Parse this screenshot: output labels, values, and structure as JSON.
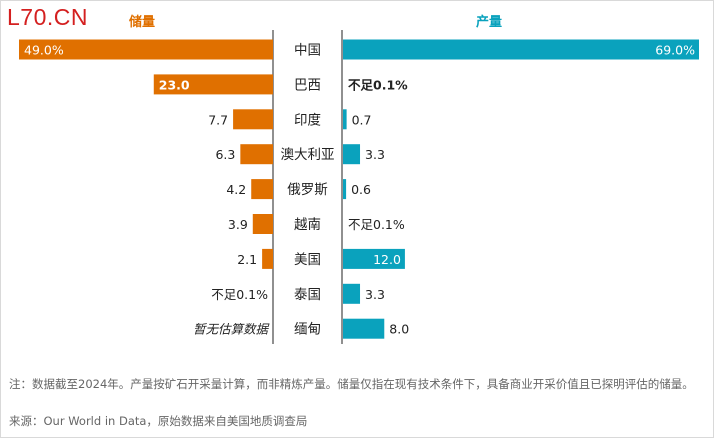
{
  "brand": "L70.CN",
  "chart_data": {
    "type": "bar",
    "title": "",
    "categories": [
      "中国",
      "巴西",
      "印度",
      "澳大利亚",
      "俄罗斯",
      "越南",
      "美国",
      "泰国",
      "缅甸"
    ],
    "series": [
      {
        "name": "储量",
        "color": "#e07000",
        "values": [
          49.0,
          23.0,
          7.7,
          6.3,
          4.2,
          3.9,
          2.1,
          null,
          null
        ],
        "labels": [
          "49.0%",
          "23.0",
          "7.7",
          "6.3",
          "4.2",
          "3.9",
          "2.1",
          "不足0.1%",
          "暂无估算数据"
        ]
      },
      {
        "name": "产量",
        "color": "#0aa2bd",
        "values": [
          69.0,
          null,
          0.7,
          3.3,
          0.6,
          null,
          12.0,
          3.3,
          8.0
        ],
        "labels": [
          "69.0%",
          "不足0.1%",
          "0.7",
          "3.3",
          "0.6",
          "不足0.1%",
          "12.0",
          "3.3",
          "8.0"
        ]
      }
    ],
    "unit": "%"
  },
  "footnote": "注：数据截至2024年。产量按矿石开采量计算，而非精炼产量。储量仅指在现有技术条件下，具备商业开采价值且已探明评估的储量。",
  "source": "来源：Our World in Data，原始数据来自美国地质调查局"
}
